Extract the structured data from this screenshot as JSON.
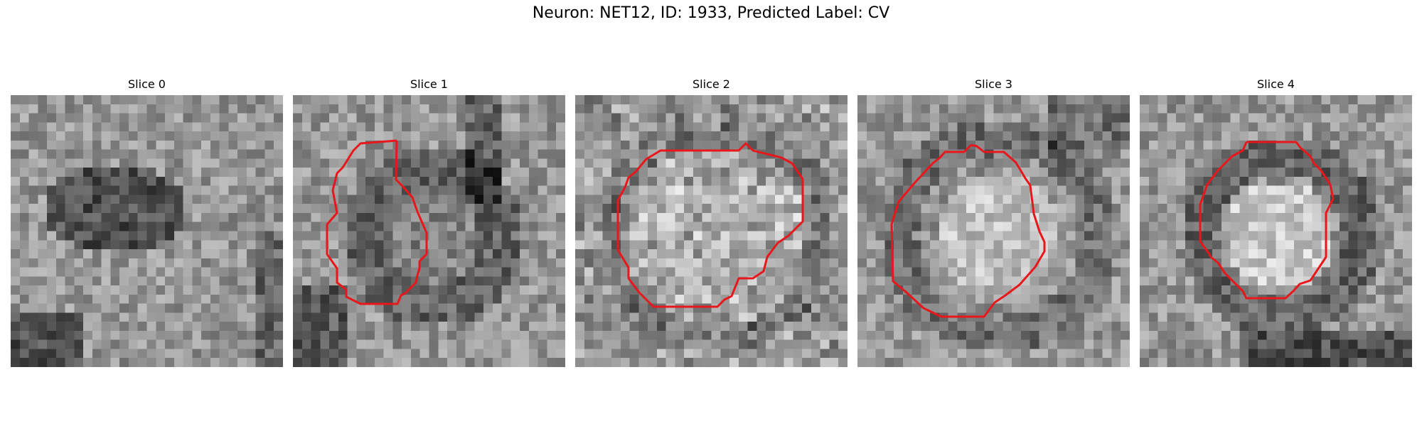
{
  "figure": {
    "title": "Neuron: NET12, ID: 1933, Predicted Label: CV",
    "panels": [
      {
        "title": "Slice 0",
        "has_contour": false
      },
      {
        "title": "Slice 1",
        "has_contour": true
      },
      {
        "title": "Slice 2",
        "has_contour": true
      },
      {
        "title": "Slice 3",
        "has_contour": true
      },
      {
        "title": "Slice 4",
        "has_contour": true
      }
    ],
    "colors": {
      "contour": "#e8171b",
      "background": "#ffffff"
    },
    "image_colormap": "grayscale"
  }
}
